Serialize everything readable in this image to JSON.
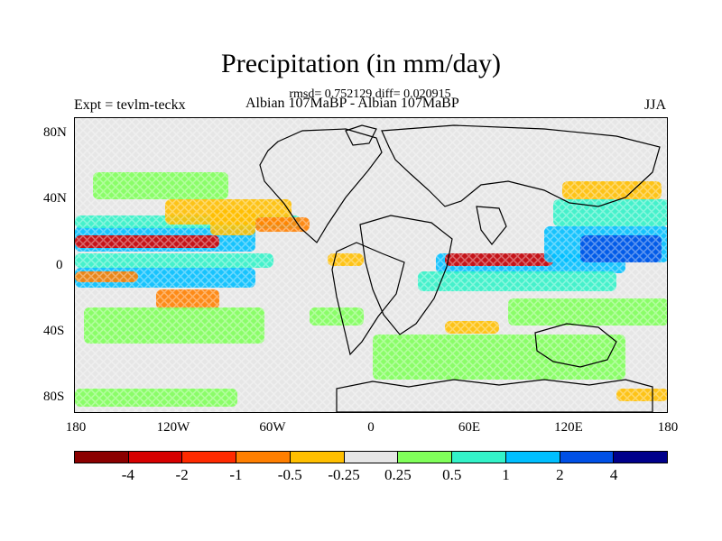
{
  "title": "Precipitation (in mm/day)",
  "stats_line": "rmsd= 0.752129 diff= 0.020915",
  "experiment": "Expt = tevlm-teckx",
  "experiment_names": "Albian   107MaBP - Albian   107MaBP",
  "season": "JJA",
  "lat_labels": [
    "80N",
    "40N",
    "0",
    "40S",
    "80S"
  ],
  "lon_labels": [
    "180",
    "120W",
    "60W",
    "0",
    "60E",
    "120E",
    "180"
  ],
  "colorbar": {
    "colors": [
      "#8b0000",
      "#d70000",
      "#ff2a00",
      "#ff7f00",
      "#ffbf00",
      "#e6e6e6",
      "#80ff5a",
      "#33f2c8",
      "#00bfff",
      "#0050e6",
      "#00008b"
    ],
    "labels": [
      "-4",
      "-2",
      "-1",
      "-0.5",
      "-0.25",
      "0.25",
      "0.5",
      "1",
      "2",
      "4"
    ]
  }
}
